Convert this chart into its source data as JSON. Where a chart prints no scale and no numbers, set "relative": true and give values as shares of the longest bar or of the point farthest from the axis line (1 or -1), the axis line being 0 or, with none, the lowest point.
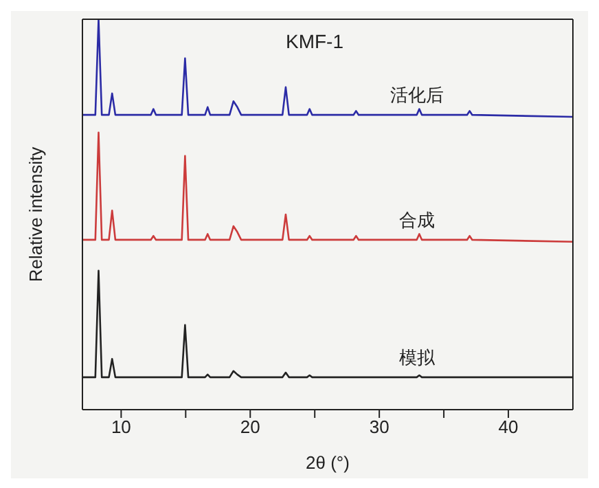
{
  "chart_data": {
    "type": "line",
    "title": "KMF-1",
    "xlabel": "2θ (°)",
    "ylabel": "Relative intensity",
    "relative": true,
    "xlim": [
      7,
      45
    ],
    "xticks": [
      10,
      {
        "value": 15,
        "label": null
      },
      20,
      {
        "value": 25,
        "label": null
      },
      30,
      {
        "value": 35,
        "label": null
      },
      40
    ],
    "marker": "none",
    "line_style": "solid",
    "x": [
      7,
      8.0,
      8.25,
      8.5,
      9.05,
      9.3,
      9.55,
      12.3,
      12.5,
      12.7,
      14.7,
      14.95,
      15.2,
      16.5,
      16.7,
      16.9,
      18.4,
      18.7,
      19.0,
      19.3,
      22.5,
      22.75,
      23.0,
      24.4,
      24.6,
      24.8,
      28.0,
      28.2,
      28.4,
      32.9,
      33.1,
      33.3,
      36.8,
      37.0,
      37.2,
      45
    ],
    "series": [
      {
        "name": "活化后",
        "color": "#2b2ba6",
        "values": [
          0.755,
          0.755,
          1.0,
          0.755,
          0.755,
          0.81,
          0.755,
          0.755,
          0.77,
          0.755,
          0.755,
          0.9,
          0.755,
          0.755,
          0.775,
          0.755,
          0.755,
          0.79,
          0.775,
          0.755,
          0.755,
          0.826,
          0.755,
          0.755,
          0.77,
          0.755,
          0.755,
          0.765,
          0.755,
          0.755,
          0.77,
          0.755,
          0.755,
          0.765,
          0.755,
          0.75
        ]
      },
      {
        "name": "合成",
        "color": "#cc3b3b",
        "values": [
          0.435,
          0.435,
          0.71,
          0.435,
          0.435,
          0.51,
          0.435,
          0.435,
          0.445,
          0.435,
          0.435,
          0.65,
          0.435,
          0.435,
          0.45,
          0.435,
          0.435,
          0.47,
          0.455,
          0.435,
          0.435,
          0.5,
          0.435,
          0.435,
          0.445,
          0.435,
          0.435,
          0.445,
          0.435,
          0.435,
          0.45,
          0.435,
          0.435,
          0.445,
          0.435,
          0.43
        ]
      },
      {
        "name": "模拟",
        "color": "#222222",
        "values": [
          0.083,
          0.083,
          0.356,
          0.083,
          0.083,
          0.13,
          0.083,
          0.083,
          0.083,
          0.083,
          0.083,
          0.217,
          0.083,
          0.083,
          0.09,
          0.083,
          0.083,
          0.099,
          0.09,
          0.083,
          0.083,
          0.095,
          0.083,
          0.083,
          0.088,
          0.083,
          0.083,
          0.083,
          0.083,
          0.083,
          0.088,
          0.083,
          0.083,
          0.083,
          0.083,
          0.083
        ]
      }
    ]
  }
}
